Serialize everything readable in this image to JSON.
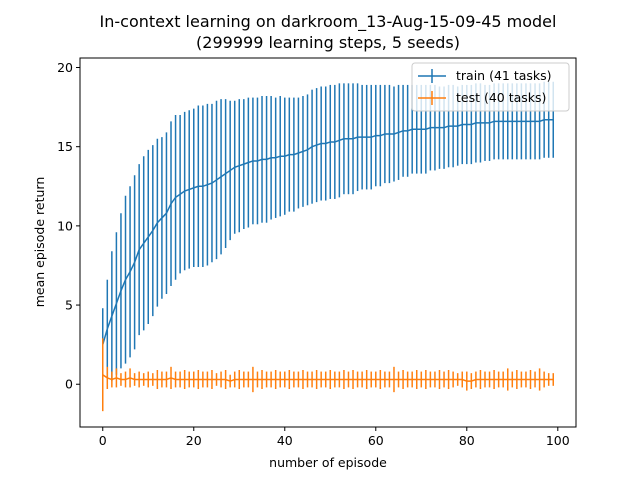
{
  "chart_data": {
    "type": "line",
    "title": "In-context learning on darkroom_13-Aug-15-09-45 model",
    "subtitle": "(299999 learning steps, 5 seeds)",
    "xlabel": "number of episode",
    "ylabel": "mean episode return",
    "xlim": [
      -5,
      104
    ],
    "ylim": [
      -2.7,
      20.6
    ],
    "xticks": [
      0,
      20,
      40,
      60,
      80,
      100
    ],
    "yticks": [
      0,
      5,
      10,
      15,
      20
    ],
    "grid": false,
    "legend_position": "top-right",
    "error_bars": true,
    "series": [
      {
        "name": "train (41 tasks)",
        "color": "#1f77b4",
        "x": [
          0,
          1,
          2,
          3,
          4,
          5,
          6,
          7,
          8,
          9,
          10,
          11,
          12,
          13,
          14,
          15,
          16,
          17,
          18,
          19,
          20,
          21,
          22,
          23,
          24,
          25,
          26,
          27,
          28,
          29,
          30,
          31,
          32,
          33,
          34,
          35,
          36,
          37,
          38,
          39,
          40,
          41,
          42,
          43,
          44,
          45,
          46,
          47,
          48,
          49,
          50,
          51,
          52,
          53,
          54,
          55,
          56,
          57,
          58,
          59,
          60,
          61,
          62,
          63,
          64,
          65,
          66,
          67,
          68,
          69,
          70,
          71,
          72,
          73,
          74,
          75,
          76,
          77,
          78,
          79,
          80,
          81,
          82,
          83,
          84,
          85,
          86,
          87,
          88,
          89,
          90,
          91,
          92,
          93,
          94,
          95,
          96,
          97,
          98,
          99
        ],
        "y": [
          2.5,
          3.5,
          4.3,
          5.1,
          5.9,
          6.6,
          7.1,
          7.7,
          8.5,
          8.9,
          9.3,
          9.7,
          10.2,
          10.5,
          10.8,
          11.4,
          11.8,
          12.0,
          12.2,
          12.3,
          12.4,
          12.5,
          12.5,
          12.6,
          12.7,
          12.9,
          13.1,
          13.3,
          13.5,
          13.7,
          13.8,
          13.9,
          14.0,
          14.1,
          14.1,
          14.2,
          14.2,
          14.3,
          14.3,
          14.4,
          14.4,
          14.5,
          14.5,
          14.6,
          14.7,
          14.8,
          15.0,
          15.1,
          15.2,
          15.2,
          15.3,
          15.3,
          15.4,
          15.5,
          15.5,
          15.5,
          15.6,
          15.6,
          15.6,
          15.6,
          15.7,
          15.7,
          15.8,
          15.8,
          15.8,
          15.9,
          16.0,
          16.0,
          16.1,
          16.1,
          16.1,
          16.1,
          16.2,
          16.2,
          16.2,
          16.2,
          16.3,
          16.3,
          16.3,
          16.4,
          16.4,
          16.4,
          16.5,
          16.5,
          16.5,
          16.5,
          16.6,
          16.6,
          16.6,
          16.6,
          16.6,
          16.6,
          16.6,
          16.6,
          16.6,
          16.6,
          16.6,
          16.7,
          16.7,
          16.7
        ],
        "err": [
          2.3,
          3.1,
          4.1,
          4.5,
          4.9,
          5.3,
          5.4,
          5.5,
          5.4,
          5.5,
          5.5,
          5.4,
          5.3,
          5.1,
          5.1,
          5.2,
          5.2,
          5.0,
          5.0,
          5.0,
          5.0,
          5.1,
          5.1,
          5.1,
          5.0,
          5.0,
          4.9,
          4.7,
          4.4,
          4.2,
          4.2,
          4.1,
          4.1,
          4.0,
          4.0,
          4.0,
          4.0,
          3.9,
          3.8,
          3.8,
          3.7,
          3.6,
          3.6,
          3.5,
          3.5,
          3.5,
          3.6,
          3.6,
          3.6,
          3.6,
          3.6,
          3.6,
          3.6,
          3.5,
          3.5,
          3.5,
          3.4,
          3.3,
          3.3,
          3.3,
          3.2,
          3.2,
          3.1,
          3.1,
          3.0,
          3.0,
          2.9,
          2.9,
          2.8,
          2.8,
          2.8,
          2.8,
          2.7,
          2.7,
          2.6,
          2.6,
          2.6,
          2.6,
          2.5,
          2.5,
          2.5,
          2.5,
          2.5,
          2.5,
          2.4,
          2.4,
          2.4,
          2.4,
          2.4,
          2.4,
          2.4,
          2.4,
          2.4,
          2.4,
          2.4,
          2.4,
          2.4,
          2.4,
          2.4,
          2.4
        ]
      },
      {
        "name": "test (40 tasks)",
        "color": "#ff7f0e",
        "x": [
          0,
          1,
          2,
          3,
          4,
          5,
          6,
          7,
          8,
          9,
          10,
          11,
          12,
          13,
          14,
          15,
          16,
          17,
          18,
          19,
          20,
          21,
          22,
          23,
          24,
          25,
          26,
          27,
          28,
          29,
          30,
          31,
          32,
          33,
          34,
          35,
          36,
          37,
          38,
          39,
          40,
          41,
          42,
          43,
          44,
          45,
          46,
          47,
          48,
          49,
          50,
          51,
          52,
          53,
          54,
          55,
          56,
          57,
          58,
          59,
          60,
          61,
          62,
          63,
          64,
          65,
          66,
          67,
          68,
          69,
          70,
          71,
          72,
          73,
          74,
          75,
          76,
          77,
          78,
          79,
          80,
          81,
          82,
          83,
          84,
          85,
          86,
          87,
          88,
          89,
          90,
          91,
          92,
          93,
          94,
          95,
          96,
          97,
          98,
          99
        ],
        "y": [
          0.6,
          0.4,
          0.3,
          0.4,
          0.3,
          0.3,
          0.4,
          0.3,
          0.3,
          0.3,
          0.3,
          0.3,
          0.3,
          0.3,
          0.3,
          0.4,
          0.3,
          0.3,
          0.3,
          0.3,
          0.3,
          0.3,
          0.3,
          0.3,
          0.3,
          0.3,
          0.3,
          0.3,
          0.2,
          0.3,
          0.3,
          0.3,
          0.3,
          0.3,
          0.3,
          0.3,
          0.3,
          0.3,
          0.3,
          0.3,
          0.3,
          0.3,
          0.3,
          0.3,
          0.3,
          0.3,
          0.3,
          0.3,
          0.3,
          0.3,
          0.3,
          0.3,
          0.3,
          0.3,
          0.3,
          0.3,
          0.3,
          0.3,
          0.3,
          0.3,
          0.3,
          0.3,
          0.3,
          0.3,
          0.3,
          0.3,
          0.3,
          0.3,
          0.3,
          0.3,
          0.3,
          0.3,
          0.3,
          0.3,
          0.3,
          0.3,
          0.3,
          0.3,
          0.3,
          0.3,
          0.2,
          0.2,
          0.3,
          0.3,
          0.3,
          0.3,
          0.3,
          0.3,
          0.3,
          0.3,
          0.3,
          0.3,
          0.3,
          0.3,
          0.3,
          0.3,
          0.3,
          0.3,
          0.3,
          0.3
        ],
        "err": [
          2.3,
          0.7,
          0.5,
          0.6,
          0.4,
          0.5,
          0.6,
          0.4,
          0.5,
          0.4,
          0.5,
          0.4,
          0.6,
          0.5,
          0.5,
          0.7,
          0.5,
          0.5,
          0.6,
          0.5,
          0.5,
          0.6,
          0.5,
          0.5,
          0.6,
          0.4,
          0.5,
          0.6,
          0.4,
          0.5,
          0.6,
          0.5,
          0.5,
          0.8,
          0.5,
          0.6,
          0.5,
          0.5,
          0.6,
          0.5,
          0.5,
          0.6,
          0.5,
          0.5,
          0.6,
          0.5,
          0.5,
          0.6,
          0.5,
          0.5,
          0.6,
          0.5,
          0.5,
          0.6,
          0.5,
          0.6,
          0.5,
          0.5,
          0.6,
          0.5,
          0.5,
          0.6,
          0.5,
          0.5,
          0.8,
          0.5,
          0.6,
          0.5,
          0.5,
          0.6,
          0.5,
          0.6,
          0.5,
          0.5,
          0.6,
          0.5,
          0.6,
          0.5,
          0.4,
          0.5,
          0.6,
          0.5,
          0.5,
          0.6,
          0.5,
          0.5,
          0.6,
          0.5,
          0.5,
          0.7,
          0.5,
          0.6,
          0.5,
          0.5,
          0.6,
          0.5,
          0.7,
          0.5,
          0.4,
          0.4
        ]
      }
    ]
  }
}
